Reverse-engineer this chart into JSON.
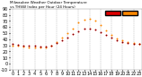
{
  "title": "Milwaukee Weather Outdoor Temperature\nvs THSW Index\nper Hour\n(24 Hours)",
  "hours": [
    0,
    1,
    2,
    3,
    4,
    5,
    6,
    7,
    8,
    9,
    10,
    11,
    12,
    13,
    14,
    15,
    16,
    17,
    18,
    19,
    20,
    21,
    22,
    23
  ],
  "temp": [
    32,
    31,
    30,
    29,
    29,
    28,
    28,
    30,
    34,
    38,
    43,
    48,
    53,
    57,
    58,
    56,
    52,
    47,
    42,
    38,
    36,
    34,
    33,
    32
  ],
  "thsw": [
    30,
    29,
    28,
    27,
    27,
    26,
    27,
    30,
    36,
    42,
    50,
    58,
    67,
    72,
    74,
    70,
    63,
    55,
    47,
    41,
    38,
    36,
    34,
    32
  ],
  "temp_color": "#dd0000",
  "thsw_color": "#ff8800",
  "background_color": "#ffffff",
  "grid_color": "#aaaaaa",
  "ylim": [
    -10,
    90
  ],
  "yticks": [
    -10,
    0,
    10,
    20,
    30,
    40,
    50,
    60,
    70,
    80,
    90
  ],
  "legend_temp_color": "#dd0000",
  "legend_thsw_color": "#ff8800",
  "tick_fontsize": 3.5,
  "title_fontsize": 3.0
}
